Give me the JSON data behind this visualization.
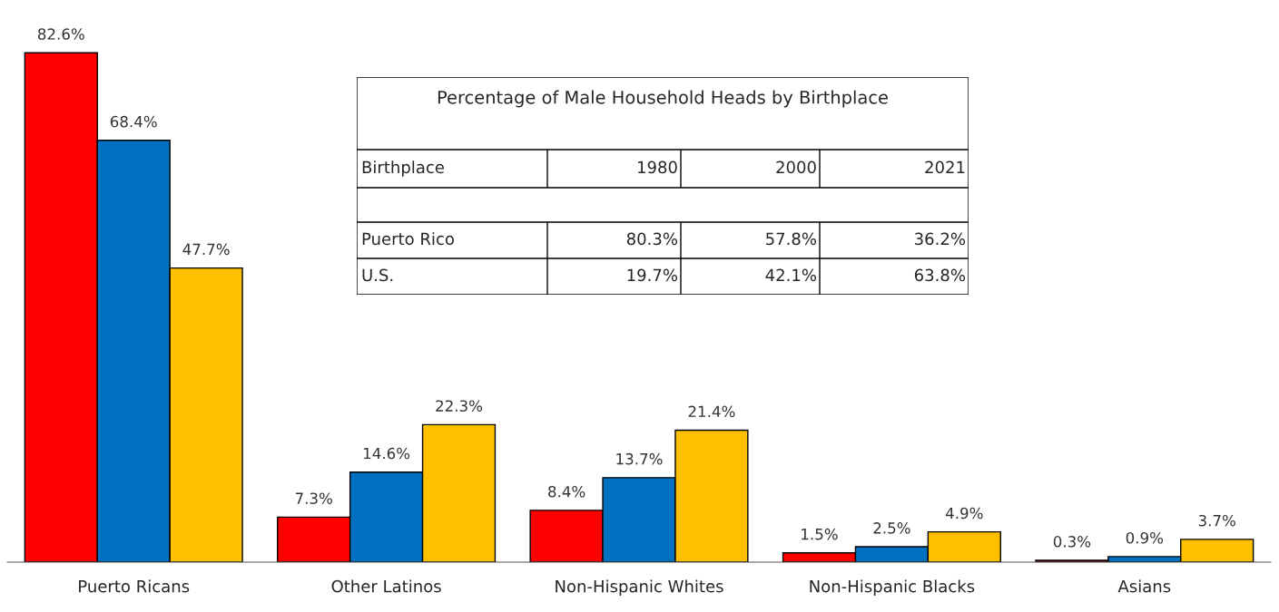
{
  "chart_data": [
    {
      "type": "bar",
      "categories": [
        "Puerto Ricans",
        "Other Latinos",
        "Non-Hispanic Whites",
        "Non-Hispanic Blacks",
        "Asians"
      ],
      "grid": false,
      "legend": false,
      "series": [
        {
          "color": "#ff0000",
          "values": [
            82.6,
            7.3,
            8.4,
            1.5,
            0.3
          ],
          "value_labels": [
            "82.6%",
            "7.3%",
            "8.4%",
            "1.5%",
            "0.3%"
          ]
        },
        {
          "color": "#0070c0",
          "values": [
            68.4,
            14.6,
            13.7,
            2.5,
            0.9
          ],
          "value_labels": [
            "68.4%",
            "14.6%",
            "13.7%",
            "2.5%",
            "0.9%"
          ]
        },
        {
          "color": "#ffc000",
          "values": [
            47.7,
            22.3,
            21.4,
            4.9,
            3.7
          ],
          "value_labels": [
            "47.7%",
            "22.3%",
            "21.4%",
            "4.9%",
            "3.7%"
          ]
        }
      ]
    },
    {
      "type": "other",
      "title": "Percentage of Male Household Heads by Birthplace",
      "ylabel": "Birthplace",
      "categories": [
        "1980",
        "2000",
        "2021"
      ],
      "series": [
        {
          "name": "Puerto Rico",
          "values": [
            80.3,
            57.8,
            36.2
          ],
          "value_labels": [
            "80.3%",
            "57.8%",
            "36.2%"
          ]
        },
        {
          "name": "U.S.",
          "values": [
            19.7,
            42.1,
            63.8
          ],
          "value_labels": [
            "19.7%",
            "42.1%",
            "63.8%"
          ]
        }
      ]
    }
  ]
}
